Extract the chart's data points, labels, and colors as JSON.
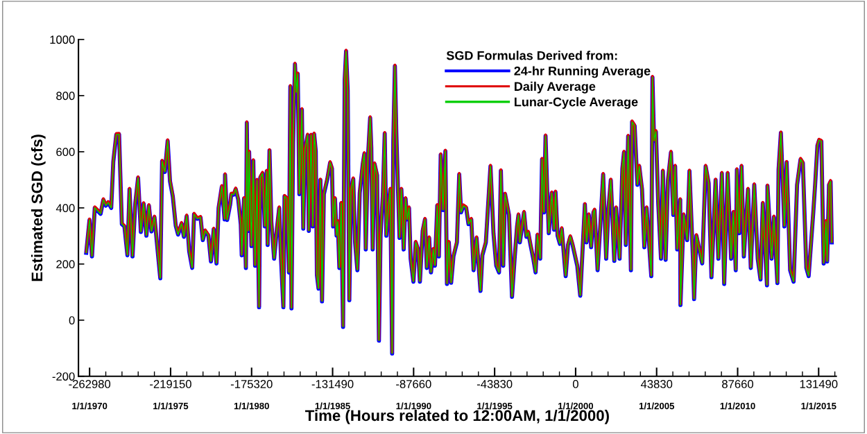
{
  "chart_data": {
    "type": "line",
    "ylabel": "Estimated SGD (cfs)",
    "xlabel": "Time (Hours related to 12:00AM, 1/1/2000)",
    "legend_title": "SGD Formulas Derived from:",
    "legend": "top right",
    "grid": false,
    "xlim": [
      -269000,
      141000
    ],
    "ylim": [
      -200,
      1000
    ],
    "xticks": [
      -262980,
      -219150,
      -175320,
      -131490,
      -87660,
      -43830,
      0,
      43830,
      87660,
      131490
    ],
    "x2lim": [
      "1969-04-25",
      "2016-02-01"
    ],
    "x2ticks": [
      {
        "value": "1970-01-01",
        "label": "1/1/1970"
      },
      {
        "value": "1975-01-01",
        "label": "1/1/1975"
      },
      {
        "value": "1980-01-01",
        "label": "1/1/1980"
      },
      {
        "value": "1985-01-01",
        "label": "1/1/1985"
      },
      {
        "value": "1990-01-01",
        "label": "1/1/1990"
      },
      {
        "value": "1995-01-01",
        "label": "1/1/1995"
      },
      {
        "value": "2000-01-01",
        "label": "1/1/2000"
      },
      {
        "value": "2005-01-01",
        "label": "1/1/2005"
      },
      {
        "value": "2010-01-01",
        "label": "1/1/2010"
      },
      {
        "value": "2015-01-01",
        "label": "1/1/2015"
      }
    ],
    "yticks": [
      -200,
      0,
      200,
      400,
      600,
      800,
      1000
    ],
    "x": [
      -264798,
      -263030,
      -261680,
      -260180,
      -257030,
      -255530,
      -254160,
      -252900,
      -251280,
      -250150,
      -248520,
      -247020,
      -245520,
      -244140,
      -242510,
      -241380,
      -239750,
      -238250,
      -236740,
      -235240,
      -233740,
      -232240,
      -230880,
      -229490,
      -227870,
      -224730,
      -223740,
      -222240,
      -220740,
      -219470,
      -217960,
      -216350,
      -215100,
      -213220,
      -211950,
      -210450,
      -209090,
      -207460,
      -206460,
      -204700,
      -202950,
      -201700,
      -200450,
      -198690,
      -197310,
      -195810,
      -194300,
      -193180,
      -191430,
      -189930,
      -189680,
      -188550,
      -186930,
      -186300,
      -185050,
      -183920,
      -182540,
      -181170,
      -180660,
      -179410,
      -178410,
      -177910,
      -177160,
      -176650,
      -175410,
      -174400,
      -173420,
      -172400,
      -171270,
      -170640,
      -169400,
      -168150,
      -167140,
      -166640,
      -165640,
      -164630,
      -163130,
      -161620,
      -160380,
      -159380,
      -158130,
      -157500,
      -156250,
      -155120,
      -154370,
      -153740,
      -152870,
      -151860,
      -151110,
      -150360,
      -149480,
      -148110,
      -147360,
      -146480,
      -144980,
      -144360,
      -143100,
      -142220,
      -141480,
      -140600,
      -139980,
      -139100,
      -138100,
      -137220,
      -136220,
      -134340,
      -132840,
      -131830,
      -131200,
      -130210,
      -129330,
      -128710,
      -127830,
      -126830,
      -125830,
      -124950,
      -124200,
      -123320,
      -122450,
      -121570,
      -120320,
      -119320,
      -118070,
      -116810,
      -115190,
      -114300,
      -113550,
      -112420,
      -111180,
      -110550,
      -109800,
      -108800,
      -107420,
      -106420,
      -105540,
      -104290,
      -103290,
      -102420,
      -101170,
      -100290,
      -99280,
      -98660,
      -97780,
      -97030,
      -96150,
      -95280,
      -94280,
      -93030,
      -92020,
      -91150,
      -90140,
      -89270,
      -87770,
      -86510,
      -85260,
      -84260,
      -82760,
      -81510,
      -80510,
      -79250,
      -78250,
      -77000,
      -76120,
      -74870,
      -73990,
      -72990,
      -71740,
      -70480,
      -69610,
      -68610,
      -67360,
      -66110,
      -64230,
      -62980,
      -61970,
      -60720,
      -59220,
      -57970,
      -56460,
      -55210,
      -53590,
      -51460,
      -50460,
      -48580,
      -46070,
      -44450,
      -42950,
      -41450,
      -40440,
      -39180,
      -38180,
      -36060,
      -34430,
      -32930,
      -31680,
      -30930,
      -30170,
      -27920,
      -26670,
      -25670,
      -24410,
      -22910,
      -21660,
      -20660,
      -19160,
      -18150,
      -17150,
      -16270,
      -15400,
      -14520,
      -12900,
      -11640,
      -10890,
      -9770,
      -8510,
      -7510,
      -5380,
      -4130,
      -2880,
      -1630,
      880,
      2500,
      5010,
      5880,
      7140,
      8390,
      9640,
      10260,
      11890,
      13400,
      14900,
      16530,
      17780,
      19040,
      20920,
      21910,
      23790,
      25290,
      26170,
      27160,
      28420,
      29920,
      30540,
      31930,
      33430,
      34430,
      35930,
      37180,
      38430,
      39440,
      40940,
      41570,
      42440,
      43440,
      44700,
      46200,
      47200,
      48700,
      49950,
      51580,
      52830,
      53840,
      54960,
      56590,
      56720,
      58470,
      60350,
      61600,
      63480,
      64110,
      65350,
      68490,
      70360,
      71990,
      73490,
      75740,
      77240,
      79120,
      80380,
      82260,
      84130,
      85390,
      86640,
      87270,
      88520,
      89770,
      91020,
      93280,
      94780,
      96650,
      98530,
      100030,
      101280,
      103540,
      103790,
      106040,
      107290,
      109170,
      109800,
      111060,
      112940,
      114180,
      116060,
      117940,
      119820,
      121700,
      122950,
      124830,
      126080,
      128590,
      129580,
      130830,
      131710,
      132960,
      134210,
      135460,
      136090,
      137090,
      137970,
      138590
    ],
    "series": [
      {
        "name": "24-hr Running Average",
        "color": "#0000ff",
        "values": [
          240,
          357,
          227,
          400,
          379,
          429,
          408,
          419,
          400,
          565,
          661,
          662,
          342,
          334,
          231,
          466,
          227,
          416,
          507,
          314,
          415,
          301,
          408,
          316,
          367,
          149,
          566,
          528,
          639,
          495,
          441,
          336,
          305,
          344,
          297,
          371,
          245,
          186,
          377,
          361,
          366,
          285,
          318,
          301,
          209,
          324,
          202,
          400,
          476,
          359,
          518,
          357,
          412,
          449,
          447,
          467,
          429,
          341,
          231,
          433,
          186,
          703,
          318,
          599,
          264,
          568,
          194,
          498,
          46,
          508,
          523,
          334,
          530,
          268,
          604,
          350,
          219,
          326,
          400,
          216,
          46,
          441,
          433,
          170,
          832,
          42,
          630,
          912,
          812,
          877,
          449,
          750,
          326,
          606,
          659,
          318,
          659,
          334,
          663,
          602,
          161,
          112,
          499,
          67,
          449,
          503,
          561,
          540,
          334,
          433,
          301,
          351,
          186,
          416,
          -24,
          857,
          958,
          818,
          71,
          461,
          503,
          277,
          178,
          453,
          556,
          593,
          252,
          572,
          721,
          614,
          252,
          557,
          516,
          -73,
          301,
          449,
          665,
          301,
          408,
          466,
          -119,
          639,
          905,
          671,
          474,
          293,
          466,
          252,
          433,
          359,
          400,
          219,
          137,
          277,
          252,
          137,
          318,
          359,
          186,
          293,
          170,
          252,
          194,
          408,
          227,
          589,
          392,
          602,
          129,
          277,
          133,
          227,
          277,
          519,
          384,
          407,
          400,
          342,
          359,
          178,
          293,
          104,
          231,
          277,
          548,
          310,
          194,
          170,
          532,
          194,
          449,
          375,
          83,
          227,
          334,
          375,
          277,
          384,
          297,
          313,
          268,
          219,
          170,
          303,
          219,
          573,
          384,
          656,
          466,
          310,
          453,
          322,
          456,
          301,
          272,
          326,
          157,
          268,
          297,
          268,
          194,
          87,
          412,
          277,
          375,
          260,
          384,
          392,
          178,
          342,
          519,
          219,
          400,
          499,
          211,
          400,
          219,
          540,
          598,
          268,
          655,
          178,
          706,
          692,
          482,
          548,
          466,
          260,
          400,
          301,
          157,
          865,
          639,
          672,
          416,
          219,
          531,
          215,
          499,
          598,
          375,
          548,
          252,
          429,
          54,
          375,
          285,
          531,
          219,
          75,
          301,
          202,
          548,
          488,
          153,
          499,
          219,
          523,
          129,
          523,
          219,
          384,
          178,
          536,
          310,
          548,
          227,
          466,
          186,
          482,
          219,
          145,
          416,
          124,
          478,
          219,
          367,
          132,
          536,
          667,
          334,
          562,
          178,
          137,
          482,
          573,
          560,
          186,
          157,
          384,
          482,
          622,
          641,
          637,
          202,
          351,
          209,
          482,
          494,
          277
        ]
      },
      {
        "name": "Daily Average",
        "color": "#e00000",
        "values": [
          240,
          357,
          227,
          400,
          379,
          429,
          408,
          419,
          400,
          565,
          661,
          662,
          342,
          334,
          231,
          466,
          227,
          416,
          507,
          314,
          415,
          301,
          408,
          316,
          367,
          149,
          566,
          528,
          639,
          495,
          441,
          336,
          305,
          344,
          297,
          371,
          245,
          186,
          377,
          361,
          366,
          285,
          318,
          301,
          209,
          324,
          202,
          400,
          476,
          359,
          518,
          357,
          412,
          449,
          447,
          467,
          429,
          341,
          231,
          433,
          186,
          703,
          318,
          599,
          264,
          568,
          194,
          498,
          46,
          508,
          523,
          334,
          530,
          268,
          604,
          350,
          219,
          326,
          400,
          216,
          46,
          441,
          433,
          170,
          832,
          42,
          630,
          912,
          812,
          877,
          449,
          750,
          326,
          606,
          659,
          318,
          659,
          334,
          663,
          602,
          161,
          112,
          499,
          67,
          449,
          503,
          561,
          540,
          334,
          433,
          301,
          351,
          186,
          416,
          -24,
          857,
          958,
          818,
          71,
          461,
          503,
          277,
          178,
          453,
          556,
          593,
          252,
          572,
          721,
          614,
          252,
          557,
          516,
          -73,
          301,
          449,
          665,
          301,
          408,
          466,
          -119,
          639,
          905,
          671,
          474,
          293,
          466,
          252,
          433,
          359,
          400,
          219,
          137,
          277,
          252,
          137,
          318,
          359,
          186,
          293,
          170,
          252,
          194,
          408,
          227,
          589,
          392,
          602,
          129,
          277,
          133,
          227,
          277,
          519,
          384,
          407,
          400,
          342,
          359,
          178,
          293,
          104,
          231,
          277,
          548,
          310,
          194,
          170,
          532,
          194,
          449,
          375,
          83,
          227,
          334,
          375,
          277,
          384,
          297,
          313,
          268,
          219,
          170,
          303,
          219,
          573,
          384,
          656,
          466,
          310,
          453,
          322,
          456,
          301,
          272,
          326,
          157,
          268,
          297,
          268,
          194,
          87,
          412,
          277,
          375,
          260,
          384,
          392,
          178,
          342,
          519,
          219,
          400,
          499,
          211,
          400,
          219,
          540,
          598,
          268,
          655,
          178,
          706,
          692,
          482,
          548,
          466,
          260,
          400,
          301,
          157,
          865,
          639,
          672,
          416,
          219,
          531,
          215,
          499,
          598,
          375,
          548,
          252,
          429,
          54,
          375,
          285,
          531,
          219,
          75,
          301,
          202,
          548,
          488,
          153,
          499,
          219,
          523,
          129,
          523,
          219,
          384,
          178,
          536,
          310,
          548,
          227,
          466,
          186,
          482,
          219,
          145,
          416,
          124,
          478,
          219,
          367,
          132,
          536,
          667,
          334,
          562,
          178,
          137,
          482,
          573,
          560,
          186,
          157,
          384,
          482,
          622,
          641,
          637,
          202,
          351,
          209,
          482,
          494,
          277
        ]
      },
      {
        "name": "Lunar-Cycle Average",
        "color": "#00cc00",
        "values": [
          240,
          357,
          227,
          400,
          379,
          429,
          408,
          419,
          400,
          565,
          661,
          662,
          342,
          334,
          231,
          466,
          227,
          416,
          507,
          314,
          415,
          301,
          408,
          316,
          367,
          149,
          566,
          528,
          639,
          495,
          441,
          336,
          305,
          344,
          297,
          371,
          245,
          186,
          377,
          361,
          366,
          285,
          318,
          301,
          209,
          324,
          202,
          400,
          476,
          359,
          518,
          357,
          412,
          449,
          447,
          467,
          429,
          341,
          231,
          433,
          186,
          703,
          318,
          599,
          264,
          568,
          194,
          498,
          46,
          508,
          523,
          334,
          530,
          268,
          604,
          350,
          219,
          326,
          400,
          216,
          46,
          441,
          433,
          170,
          832,
          42,
          630,
          912,
          812,
          877,
          449,
          750,
          326,
          606,
          659,
          318,
          659,
          334,
          663,
          602,
          161,
          112,
          499,
          67,
          449,
          503,
          561,
          540,
          334,
          433,
          301,
          351,
          186,
          416,
          -24,
          857,
          958,
          818,
          71,
          461,
          503,
          277,
          178,
          453,
          556,
          593,
          252,
          572,
          721,
          614,
          252,
          557,
          516,
          -73,
          301,
          449,
          665,
          301,
          408,
          466,
          -119,
          639,
          905,
          671,
          474,
          293,
          466,
          252,
          433,
          359,
          400,
          219,
          137,
          277,
          252,
          137,
          318,
          359,
          186,
          293,
          170,
          252,
          194,
          408,
          227,
          589,
          392,
          602,
          129,
          277,
          133,
          227,
          277,
          519,
          384,
          407,
          400,
          342,
          359,
          178,
          293,
          104,
          231,
          277,
          548,
          310,
          194,
          170,
          532,
          194,
          449,
          375,
          83,
          227,
          334,
          375,
          277,
          384,
          297,
          313,
          268,
          219,
          170,
          303,
          219,
          573,
          384,
          656,
          466,
          310,
          453,
          322,
          456,
          301,
          272,
          326,
          157,
          268,
          297,
          268,
          194,
          87,
          412,
          277,
          375,
          260,
          384,
          392,
          178,
          342,
          519,
          219,
          400,
          499,
          211,
          400,
          219,
          540,
          598,
          268,
          655,
          178,
          706,
          692,
          482,
          548,
          466,
          260,
          400,
          301,
          157,
          865,
          639,
          672,
          416,
          219,
          531,
          215,
          499,
          598,
          375,
          548,
          252,
          429,
          54,
          375,
          285,
          531,
          219,
          75,
          301,
          202,
          548,
          488,
          153,
          499,
          219,
          523,
          129,
          523,
          219,
          384,
          178,
          536,
          310,
          548,
          227,
          466,
          186,
          482,
          219,
          145,
          416,
          124,
          478,
          219,
          367,
          132,
          536,
          667,
          334,
          562,
          178,
          137,
          482,
          573,
          560,
          186,
          157,
          384,
          482,
          622,
          641,
          637,
          202,
          351,
          209,
          482,
          494,
          277
        ]
      }
    ]
  }
}
